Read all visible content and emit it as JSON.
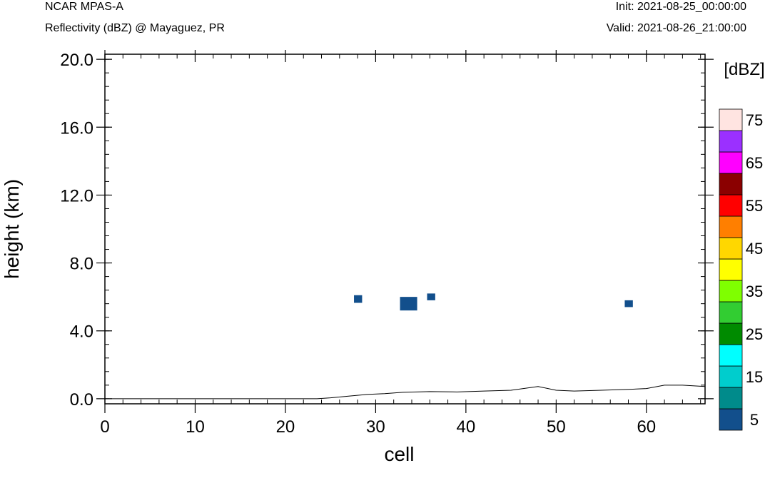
{
  "header": {
    "model": "NCAR MPAS-A",
    "subtitle": "Reflectivity (dBZ) @ Mayaguez, PR",
    "init": "Init: 2021-08-25_00:00:00",
    "valid": "Valid: 2021-08-26_21:00:00"
  },
  "chart_data": {
    "type": "heatmap",
    "xlabel": "cell",
    "ylabel": "height (km)",
    "xlim": [
      0,
      66.5
    ],
    "ylim": [
      -0.3,
      20.3
    ],
    "xticks": [
      0,
      10,
      20,
      30,
      40,
      50,
      60
    ],
    "xtick_labels": [
      "0",
      "10",
      "20",
      "30",
      "40",
      "50",
      "60"
    ],
    "yticks": [
      0,
      4,
      8,
      12,
      16,
      20
    ],
    "ytick_labels": [
      "0.0",
      "4.0",
      "8.0",
      "12.0",
      "16.0",
      "20.0"
    ],
    "cells": [
      {
        "x0": 27.6,
        "x1": 28.5,
        "y0": 5.65,
        "y1": 6.1,
        "dbz": 5
      },
      {
        "x0": 32.7,
        "x1": 34.6,
        "y0": 5.2,
        "y1": 6.0,
        "dbz": 5
      },
      {
        "x0": 35.7,
        "x1": 36.6,
        "y0": 5.8,
        "y1": 6.2,
        "dbz": 5
      },
      {
        "x0": 57.6,
        "x1": 58.5,
        "y0": 5.4,
        "y1": 5.8,
        "dbz": 5
      }
    ],
    "terrain": {
      "x": [
        0.5,
        23.5,
        25,
        27,
        29,
        31,
        33,
        36,
        39,
        42,
        45,
        48,
        50,
        52,
        55,
        58,
        60,
        62,
        64,
        66.5
      ],
      "y": [
        0.0,
        0.0,
        0.05,
        0.15,
        0.25,
        0.3,
        0.38,
        0.42,
        0.4,
        0.45,
        0.5,
        0.72,
        0.5,
        0.45,
        0.5,
        0.55,
        0.6,
        0.8,
        0.8,
        0.72
      ]
    },
    "colorbar": {
      "title": "[dBZ]",
      "bins": [
        5,
        10,
        15,
        20,
        25,
        30,
        35,
        40,
        45,
        50,
        55,
        60,
        65,
        70,
        75
      ],
      "colors": [
        "#124f8c",
        "#008b8b",
        "#00cdcd",
        "#00ffff",
        "#008b00",
        "#32cd32",
        "#7fff00",
        "#ffff00",
        "#ffd700",
        "#ff7f00",
        "#ff0000",
        "#8b0000",
        "#ff00ff",
        "#9b30ff",
        "#ffe4e1"
      ],
      "labels": [
        "5",
        "15",
        "25",
        "35",
        "45",
        "55",
        "65",
        "75"
      ]
    }
  }
}
